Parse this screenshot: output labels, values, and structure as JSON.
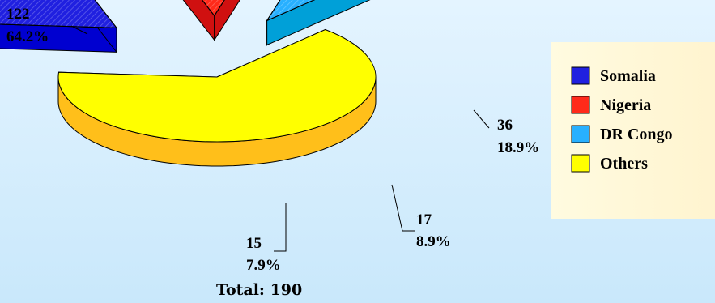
{
  "chart_data": {
    "type": "pie",
    "style": "3d-exploded",
    "total_label": "Total: 190",
    "slices": [
      {
        "name": "Others",
        "value": 122,
        "percent": "64.2%",
        "color": "#ffff00",
        "side": "#ffbf1a"
      },
      {
        "name": "Somalia",
        "value": 36,
        "percent": "18.9%",
        "color": "#2020e0",
        "side": "#0000d0"
      },
      {
        "name": "Nigeria",
        "value": 17,
        "percent": "8.9%",
        "color": "#ff2a1a",
        "side": "#d01010"
      },
      {
        "name": "DR Congo",
        "value": 15,
        "percent": "7.9%",
        "color": "#28b0ff",
        "side": "#00a0d8"
      }
    ],
    "legend": {
      "position": "right",
      "items": [
        "Somalia",
        "Nigeria",
        "DR Congo",
        "Others"
      ]
    }
  }
}
